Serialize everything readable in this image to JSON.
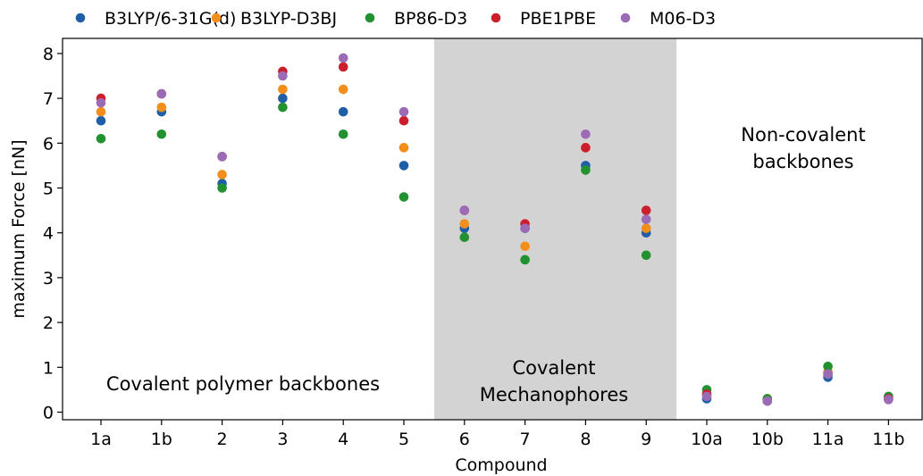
{
  "chart_data": {
    "type": "scatter",
    "xlabel": "Compound",
    "ylabel": "maximum Force [nN]",
    "ylim": [
      -0.15,
      8.2
    ],
    "yticks": [
      0,
      1,
      2,
      3,
      4,
      5,
      6,
      7,
      8
    ],
    "categories": [
      "1a",
      "1b",
      "2",
      "3",
      "4",
      "5",
      "6",
      "7",
      "8",
      "9",
      "10a",
      "10b",
      "11a",
      "11b"
    ],
    "legend_position": "top",
    "series": [
      {
        "name": "B3LYP/6-31G(d)",
        "color": "#1f5fa8",
        "values": [
          6.5,
          6.7,
          5.1,
          7.0,
          6.7,
          5.5,
          4.1,
          4.1,
          5.5,
          4.0,
          0.3,
          0.25,
          0.78,
          0.3
        ]
      },
      {
        "name": "B3LYP-D3BJ",
        "color": "#f28e1c",
        "values": [
          6.7,
          6.8,
          5.3,
          7.2,
          7.2,
          5.9,
          4.2,
          3.7,
          5.9,
          4.1,
          0.4,
          0.3,
          0.9,
          0.3
        ]
      },
      {
        "name": "BP86-D3",
        "color": "#22912f",
        "values": [
          6.1,
          6.2,
          5.0,
          6.8,
          6.2,
          4.8,
          3.9,
          3.4,
          5.4,
          3.5,
          0.5,
          0.3,
          1.02,
          0.35
        ]
      },
      {
        "name": "PBE1PBE",
        "color": "#cc1f2e",
        "values": [
          7.0,
          7.1,
          5.7,
          7.6,
          7.7,
          6.5,
          4.5,
          4.2,
          5.9,
          4.5,
          0.4,
          0.25,
          0.85,
          0.3
        ]
      },
      {
        "name": "M06-D3",
        "color": "#9b6bb5",
        "values": [
          6.9,
          7.1,
          5.7,
          7.5,
          7.9,
          6.7,
          4.5,
          4.1,
          6.2,
          4.3,
          0.35,
          0.25,
          0.85,
          0.28
        ]
      }
    ],
    "regions": [
      {
        "label": "Covalent polymer backbones",
        "range": [
          "1a",
          "5"
        ],
        "shaded": false
      },
      {
        "label": "Covalent\nMechanophores",
        "range": [
          "6",
          "9"
        ],
        "shaded": true,
        "color": "#d3d3d3"
      },
      {
        "label": "Non-covalent\nbackbones",
        "range": [
          "10a",
          "11b"
        ],
        "shaded": false
      }
    ]
  }
}
